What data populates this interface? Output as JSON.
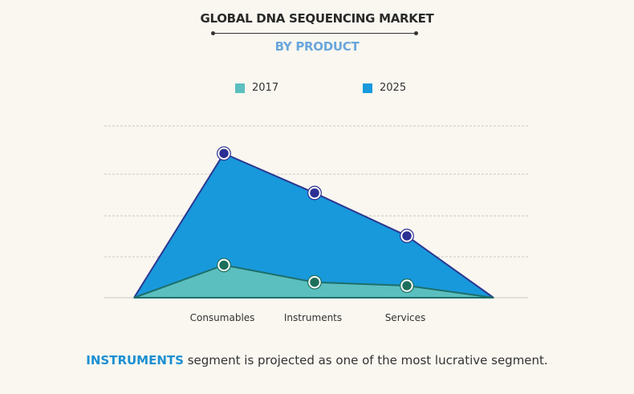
{
  "chart_data": {
    "type": "area",
    "title": "GLOBAL DNA SEQUENCING MARKET",
    "subtitle": "BY PRODUCT",
    "categories": [
      "Consumables",
      "Instruments",
      "Services"
    ],
    "series": [
      {
        "name": "2017",
        "values": [
          19,
          9,
          7
        ],
        "color": "#5bbfbf",
        "line": "#1d6f6a",
        "marker": "#1d6f5a"
      },
      {
        "name": "2025",
        "values": [
          84,
          61,
          36
        ],
        "color": "#1899db",
        "line": "#2c3790",
        "marker": "#2c2f93"
      }
    ],
    "xlabel": "",
    "ylabel": "",
    "ylim": [
      0,
      100
    ],
    "grid": true,
    "legend": "top-center"
  },
  "footer": {
    "highlight": "INSTRUMENTS",
    "text": " segment is projected as one of the most lucrative segment."
  }
}
